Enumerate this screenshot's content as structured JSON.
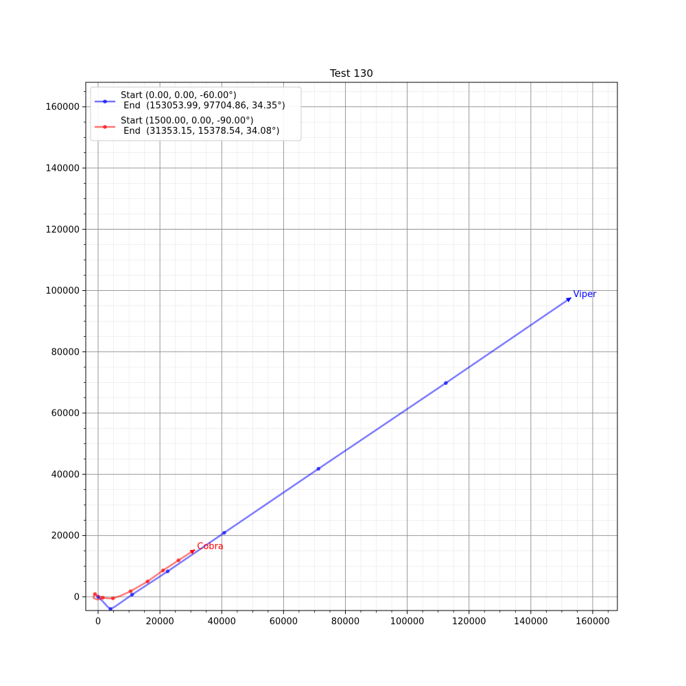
{
  "chart_data": {
    "type": "line",
    "title": "Test 130",
    "xlabel": "",
    "ylabel": "",
    "xlim": [
      -4000,
      168000
    ],
    "ylim": [
      -4500,
      168000
    ],
    "x_ticks": [
      0,
      20000,
      40000,
      60000,
      80000,
      100000,
      120000,
      140000,
      160000
    ],
    "y_ticks": [
      0,
      20000,
      40000,
      60000,
      80000,
      100000,
      120000,
      140000,
      160000
    ],
    "x_tick_labels": [
      "0",
      "20000",
      "40000",
      "60000",
      "80000",
      "100000",
      "120000",
      "140000",
      "160000"
    ],
    "y_tick_labels": [
      "0",
      "20000",
      "40000",
      "60000",
      "80000",
      "100000",
      "120000",
      "140000",
      "160000"
    ],
    "grid": {
      "major": true,
      "minor": true
    },
    "legend_position": "top-left",
    "series": [
      {
        "name": "Start (0.00, 0.00, -60.00°)\n End  (153053.99, 97704.86, 34.35°)",
        "legend_lines": [
          "Start (0.00, 0.00, -60.00°)",
          " End  (153053.99, 97704.86, 34.35°)"
        ],
        "color": "#0000ff",
        "annotation": "Viper",
        "path": [
          [
            0,
            0
          ],
          [
            1500,
            -1500
          ],
          [
            3000,
            -3200
          ],
          [
            4000,
            -4000
          ],
          [
            5500,
            -3200
          ],
          [
            11000,
            700
          ],
          [
            22500,
            8300
          ],
          [
            40800,
            20900
          ],
          [
            71300,
            41800
          ],
          [
            112500,
            69800
          ],
          [
            153054,
            97705
          ]
        ],
        "markers": [
          [
            0,
            0
          ],
          [
            4000,
            -4000
          ],
          [
            11000,
            700
          ],
          [
            22500,
            8300
          ],
          [
            40800,
            20900
          ],
          [
            71300,
            41800
          ],
          [
            112500,
            69800
          ]
        ],
        "end": [
          153054,
          97705
        ]
      },
      {
        "name": "Start (1500.00, 0.00, -90.00°)\n End  (31353.15, 15378.54, 34.08°)",
        "legend_lines": [
          "Start (1500.00, 0.00, -90.00°)",
          " End  (31353.15, 15378.54, 34.08°)"
        ],
        "color": "#ff0000",
        "annotation": "Cobra",
        "path": [
          [
            1500,
            0
          ],
          [
            600,
            -800
          ],
          [
            -300,
            -900
          ],
          [
            -1500,
            -400
          ],
          [
            -1300,
            700
          ],
          [
            -1000,
            900
          ],
          [
            -400,
            400
          ],
          [
            1500,
            -300
          ],
          [
            3000,
            -500
          ],
          [
            4800,
            -500
          ],
          [
            7000,
            200
          ],
          [
            10500,
            1800
          ],
          [
            16000,
            5000
          ],
          [
            21000,
            8600
          ],
          [
            26000,
            11900
          ],
          [
            31353,
            15379
          ]
        ],
        "markers": [
          [
            -1000,
            900
          ],
          [
            1500,
            -300
          ],
          [
            4800,
            -500
          ],
          [
            10500,
            1800
          ],
          [
            16000,
            5000
          ],
          [
            21000,
            8600
          ],
          [
            26000,
            11900
          ]
        ],
        "end": [
          31353,
          15379
        ]
      }
    ]
  }
}
